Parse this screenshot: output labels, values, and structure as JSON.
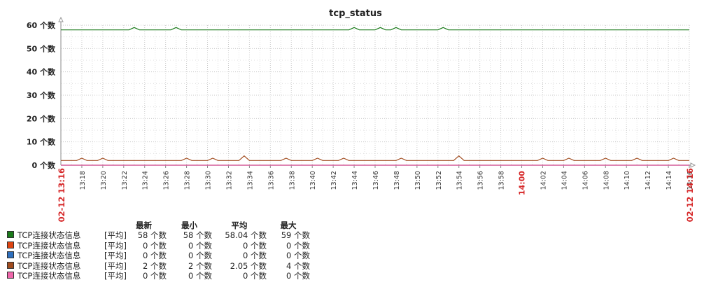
{
  "chart_data": {
    "type": "line",
    "title": "tcp_status",
    "y_unit": "个数",
    "ylim": [
      0,
      60
    ],
    "y_ticks": [
      "0 个数",
      "10 个数",
      "20 个数",
      "30 个数",
      "40 个数",
      "50 个数",
      "60 个数"
    ],
    "x_range": [
      "13:16",
      "14:16"
    ],
    "x_ticks": [
      "13:18",
      "13:20",
      "13:22",
      "13:24",
      "13:26",
      "13:28",
      "13:30",
      "13:32",
      "13:34",
      "13:36",
      "13:38",
      "13:40",
      "13:42",
      "13:44",
      "13:46",
      "13:48",
      "13:50",
      "13:52",
      "13:54",
      "13:56",
      "13:58",
      "14:00",
      "14:02",
      "14:04",
      "14:06",
      "14:08",
      "14:10",
      "14:12",
      "14:14",
      "14:16"
    ],
    "x_ticks_highlight": [
      "14:00"
    ],
    "x_start_label": "02-12 13:16",
    "x_end_label": "02-12 14:16",
    "grid": true,
    "legend_position": "bottom-left",
    "series": [
      {
        "name": "TCP连接状态信息",
        "color": "#1a7a1a",
        "base": 58,
        "spikes": [
          [
            13.5,
            59
          ],
          [
            14,
            59
          ],
          [
            21.5,
            59
          ],
          [
            55.5,
            59
          ],
          [
            61,
            59
          ],
          [
            63.5,
            59
          ],
          [
            64,
            59
          ],
          [
            72.5,
            59
          ]
        ]
      },
      {
        "name": "TCP连接状态信息",
        "color": "#dd4411",
        "base": 0,
        "spikes": []
      },
      {
        "name": "TCP连接状态信息",
        "color": "#2e6fbd",
        "base": 0,
        "spikes": []
      },
      {
        "name": "TCP连接状态信息",
        "color": "#a04b1e",
        "base": 2,
        "spikes": [
          [
            3.5,
            3
          ],
          [
            8,
            3
          ],
          [
            23.5,
            3
          ],
          [
            29,
            3
          ],
          [
            35,
            4
          ],
          [
            42.5,
            3
          ],
          [
            49,
            3
          ],
          [
            53.5,
            3
          ],
          [
            65,
            3
          ],
          [
            75.5,
            4
          ],
          [
            91.5,
            3
          ],
          [
            97,
            3
          ],
          [
            104,
            3
          ],
          [
            110,
            3
          ],
          [
            117,
            3
          ]
        ]
      },
      {
        "name": "TCP连接状态信息",
        "color": "#ee66aa",
        "base": 0,
        "spikes": []
      }
    ]
  },
  "legend": {
    "headers": [
      "最新",
      "最小",
      "平均",
      "最大"
    ],
    "rows": [
      {
        "color": "#1a7a1a",
        "name": "TCP连接状态信息",
        "func": "[平均]",
        "last": "58 个数",
        "min": "58 个数",
        "avg": "58.04 个数",
        "max": "59 个数"
      },
      {
        "color": "#dd4411",
        "name": "TCP连接状态信息",
        "func": "[平均]",
        "last": "0 个数",
        "min": "0 个数",
        "avg": "0 个数",
        "max": "0 个数"
      },
      {
        "color": "#2e6fbd",
        "name": "TCP连接状态信息",
        "func": "[平均]",
        "last": "0 个数",
        "min": "0 个数",
        "avg": "0 个数",
        "max": "0 个数"
      },
      {
        "color": "#a04b1e",
        "name": "TCP连接状态信息",
        "func": "[平均]",
        "last": "2 个数",
        "min": "2 个数",
        "avg": "2.05 个数",
        "max": "4 个数"
      },
      {
        "color": "#ee66aa",
        "name": "TCP连接状态信息",
        "func": "[平均]",
        "last": "0 个数",
        "min": "0 个数",
        "avg": "0 个数",
        "max": "0 个数"
      }
    ]
  }
}
